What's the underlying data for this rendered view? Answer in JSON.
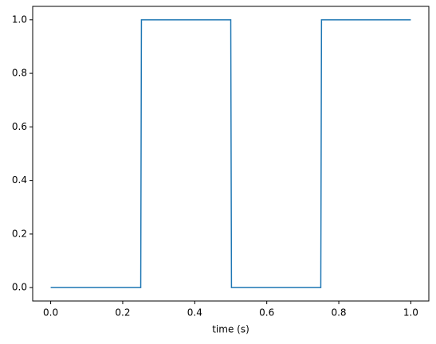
{
  "chart_data": {
    "type": "line",
    "x_label": "time (s)",
    "x": [
      0,
      0.25,
      0.252,
      0.5,
      0.502,
      0.75,
      0.752,
      1
    ],
    "series": [
      {
        "color": "#1f77b4",
        "values": [
          0,
          0,
          1,
          1,
          0,
          0,
          1,
          1
        ]
      }
    ],
    "xlim": [
      -0.05,
      1.05
    ],
    "ylim": [
      -0.05,
      1.05
    ],
    "xticks": [
      {
        "value": 0,
        "label": "0.0"
      },
      {
        "value": 0.2,
        "label": "0.2"
      },
      {
        "value": 0.4,
        "label": "0.4"
      },
      {
        "value": 0.6,
        "label": "0.6"
      },
      {
        "value": 0.8,
        "label": "0.8"
      },
      {
        "value": 1,
        "label": "1.0"
      }
    ],
    "yticks": [
      {
        "value": 0,
        "label": "0.0"
      },
      {
        "value": 0.2,
        "label": "0.2"
      },
      {
        "value": 0.4,
        "label": "0.4"
      },
      {
        "value": 0.6,
        "label": "0.6"
      },
      {
        "value": 0.8,
        "label": "0.8"
      },
      {
        "value": 1,
        "label": "1.0"
      }
    ],
    "grid": false
  }
}
